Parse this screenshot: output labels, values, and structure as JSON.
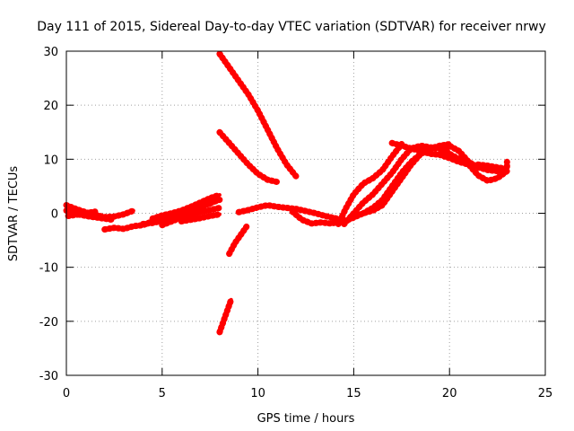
{
  "chart_data": {
    "type": "scatter",
    "title": "Day 111 of 2015, Sidereal Day-to-day VTEC variation (SDTVAR) for receiver nrwy",
    "xlabel": "GPS time / hours",
    "ylabel": "SDTVAR / TECUs",
    "xlim": [
      0,
      25
    ],
    "ylim": [
      -30,
      30
    ],
    "xticks": [
      0,
      5,
      10,
      15,
      20,
      25
    ],
    "yticks": [
      -30,
      -20,
      -10,
      0,
      10,
      20,
      30
    ],
    "xtick_labels": [
      "0",
      "5",
      "10",
      "15",
      "20",
      "25"
    ],
    "ytick_labels": [
      "-30",
      "-20",
      "-10",
      "0",
      "10",
      "20",
      "30"
    ],
    "grid": true,
    "legend": "none",
    "series_color": "#ff0000",
    "series": [
      {
        "x": [
          0.0,
          0.5,
          1.0,
          1.5,
          2.0,
          2.5,
          3.0,
          3.5
        ],
        "y": [
          1.5,
          0.8,
          0.2,
          -0.3,
          -0.7,
          -0.6,
          -0.2,
          0.5
        ]
      },
      {
        "x": [
          0.0,
          0.6,
          1.2,
          1.8,
          2.4
        ],
        "y": [
          0.5,
          -0.2,
          -0.6,
          -0.9,
          -1.2
        ]
      },
      {
        "x": [
          0.1,
          0.5,
          1.0,
          1.5
        ],
        "y": [
          -0.5,
          -0.3,
          0.0,
          0.3
        ]
      },
      {
        "x": [
          2.0,
          2.5,
          3.0,
          3.5,
          4.0,
          4.5,
          5.0
        ],
        "y": [
          -3.0,
          -2.7,
          -2.9,
          -2.4,
          -2.2,
          -1.5,
          -0.6
        ]
      },
      {
        "x": [
          4.0,
          4.5,
          5.0,
          5.5,
          6.0,
          6.5,
          7.0,
          7.5,
          8.0
        ],
        "y": [
          -2.0,
          -1.8,
          -1.4,
          -1.0,
          -0.5,
          0.3,
          1.1,
          1.9,
          2.5
        ]
      },
      {
        "x": [
          4.5,
          5.0,
          5.5,
          6.0,
          6.5,
          7.0,
          7.5,
          8.0
        ],
        "y": [
          -1.0,
          -0.4,
          0.0,
          0.5,
          1.2,
          2.0,
          2.8,
          3.4
        ]
      },
      {
        "x": [
          5.0,
          5.5,
          6.0,
          6.5,
          7.0,
          7.5,
          8.0
        ],
        "y": [
          -2.2,
          -1.5,
          -0.8,
          -0.3,
          0.2,
          0.6,
          1.0
        ]
      },
      {
        "x": [
          5.5,
          6.0,
          6.5,
          7.0,
          7.5,
          7.8
        ],
        "y": [
          -0.6,
          0.1,
          0.7,
          1.3,
          1.8,
          2.3
        ]
      },
      {
        "x": [
          6.0,
          6.5,
          7.0,
          7.5,
          8.0
        ],
        "y": [
          -1.5,
          -1.2,
          -0.9,
          -0.5,
          -0.2
        ]
      },
      {
        "x": [
          8.0,
          8.3,
          8.6
        ],
        "y": [
          -22.0,
          -19.0,
          -16.0
        ]
      },
      {
        "x": [
          8.5,
          8.8,
          9.1,
          9.4
        ],
        "y": [
          -7.5,
          -5.5,
          -4.0,
          -2.5
        ]
      },
      {
        "x": [
          8.0,
          8.5,
          9.0,
          9.5,
          10.0,
          10.5,
          11.0
        ],
        "y": [
          15.0,
          13.0,
          11.0,
          9.0,
          7.3,
          6.2,
          5.8
        ]
      },
      {
        "x": [
          8.0,
          8.5,
          9.0,
          9.5,
          10.0,
          10.5,
          11.0,
          11.5,
          12.0
        ],
        "y": [
          29.5,
          27.0,
          24.5,
          22.0,
          19.0,
          15.5,
          12.0,
          9.0,
          6.8
        ]
      },
      {
        "x": [
          9.0,
          9.5,
          10.0,
          10.5,
          11.0,
          11.5,
          12.0,
          12.5,
          13.0,
          13.5,
          14.0,
          14.5
        ],
        "y": [
          0.2,
          0.6,
          1.1,
          1.5,
          1.2,
          1.0,
          0.8,
          0.4,
          0.0,
          -0.5,
          -0.9,
          -1.3
        ]
      },
      {
        "x": [
          11.8,
          12.3,
          12.8,
          13.3,
          13.8,
          14.3
        ],
        "y": [
          0.3,
          -1.2,
          -1.9,
          -1.7,
          -1.9,
          -1.6
        ]
      },
      {
        "x": [
          14.2,
          14.6,
          15.0,
          15.5,
          16.0,
          16.5,
          17.0,
          17.5
        ],
        "y": [
          -2.0,
          1.0,
          3.5,
          5.5,
          6.5,
          8.0,
          10.5,
          12.8
        ]
      },
      {
        "x": [
          14.5,
          15.0,
          15.5,
          16.0,
          16.5,
          17.0,
          17.5,
          18.0,
          18.5,
          19.0,
          19.5
        ],
        "y": [
          -2.0,
          0.0,
          2.0,
          3.5,
          5.5,
          7.5,
          10.0,
          12.0,
          12.5,
          12.2,
          12.0
        ]
      },
      {
        "x": [
          14.5,
          15.0,
          15.5,
          16.0,
          16.5,
          17.0,
          17.5,
          18.0,
          18.5,
          19.0,
          19.5,
          20.0
        ],
        "y": [
          -1.5,
          -0.8,
          0.0,
          0.5,
          1.5,
          4.0,
          6.5,
          9.0,
          11.0,
          12.0,
          12.5,
          12.8
        ]
      },
      {
        "x": [
          15.5,
          16.0,
          16.5,
          17.0,
          17.5,
          18.0,
          18.5,
          19.0,
          19.5
        ],
        "y": [
          0.0,
          1.0,
          2.5,
          5.0,
          7.5,
          9.5,
          11.0,
          11.8,
          12.2
        ]
      },
      {
        "x": [
          17.0,
          17.5,
          18.0,
          18.5,
          19.0,
          19.5,
          20.0,
          20.5,
          21.0,
          21.5,
          22.0,
          22.5,
          23.0
        ],
        "y": [
          13.0,
          12.5,
          12.0,
          11.5,
          11.0,
          10.8,
          10.2,
          9.5,
          9.0,
          8.8,
          8.5,
          8.2,
          8.0
        ]
      },
      {
        "x": [
          19.5,
          20.0,
          20.5,
          21.0,
          21.5,
          22.0,
          22.5,
          23.0
        ],
        "y": [
          11.0,
          12.5,
          11.5,
          9.5,
          8.5,
          8.0,
          7.8,
          8.0
        ]
      },
      {
        "x": [
          19.5,
          20.0,
          20.5,
          21.0,
          21.5,
          22.0,
          22.5,
          23.0
        ],
        "y": [
          12.5,
          11.0,
          10.0,
          9.0,
          7.0,
          6.0,
          6.5,
          7.8
        ]
      },
      {
        "x": [
          21.5,
          22.0,
          22.5,
          23.0,
          23.0
        ],
        "y": [
          9.0,
          8.8,
          8.5,
          8.2,
          9.5
        ]
      }
    ]
  }
}
